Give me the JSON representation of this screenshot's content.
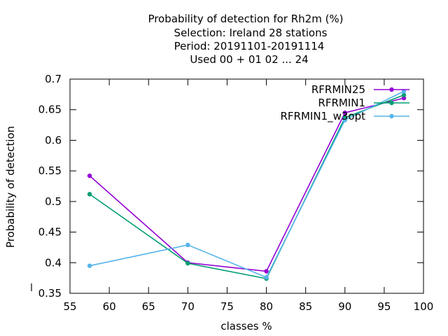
{
  "chart_data": {
    "type": "line",
    "title_lines": [
      "Probability of detection  for Rh2m (%)",
      "Selection: Ireland     28 stations",
      "Period: 20191101-20191114",
      "Used  00 + 01 02 ... 24"
    ],
    "xlabel": "classes %",
    "ylabel": "Probability of detection",
    "xlim": [
      55,
      100
    ],
    "ylim": [
      0.35,
      0.7
    ],
    "xticks": [
      "55",
      "60",
      "65",
      "70",
      "75",
      "80",
      "85",
      "90",
      "95",
      "100"
    ],
    "yticks": [
      "0.35",
      "0.4",
      "0.45",
      "0.5",
      "0.55",
      "0.6",
      "0.65",
      "0.7"
    ],
    "grid": false,
    "legend_position": "top-right",
    "series": [
      {
        "name": "RFRMIN25",
        "color": "#9400d3",
        "x": [
          57.5,
          70,
          80,
          90,
          97.5
        ],
        "y": [
          0.542,
          0.4,
          0.386,
          0.645,
          0.669
        ]
      },
      {
        "name": "RFRMIN1",
        "color": "#009e73",
        "x": [
          57.5,
          70,
          80,
          90,
          97.5
        ],
        "y": [
          0.512,
          0.399,
          0.374,
          0.637,
          0.674
        ]
      },
      {
        "name": "RFRMIN1_w3opt",
        "color": "#56b4e9",
        "x": [
          57.5,
          70,
          80,
          90,
          97.5
        ],
        "y": [
          0.395,
          0.429,
          0.376,
          0.633,
          0.68
        ]
      }
    ]
  }
}
